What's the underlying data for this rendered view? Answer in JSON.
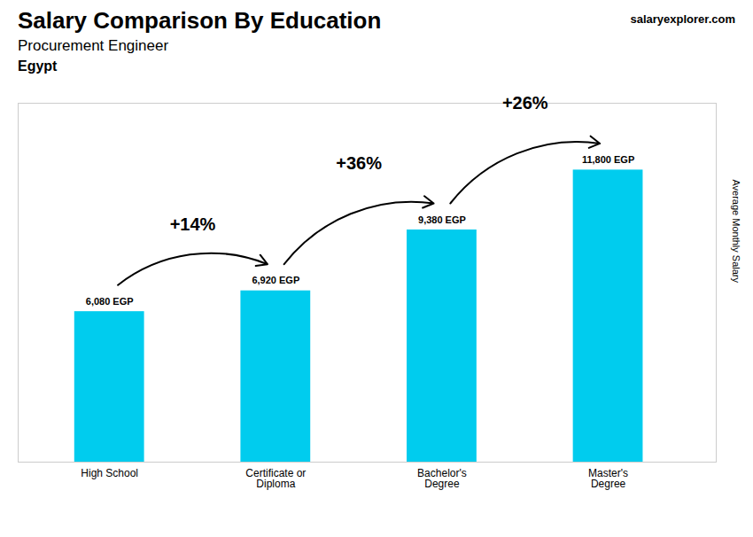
{
  "chart_data": {
    "type": "bar",
    "title": "Salary Comparison By Education",
    "subtitle": "Procurement Engineer",
    "ylabel": "Average Monthly Salary",
    "categories": [
      "High School",
      "Certificate or\nDiploma",
      "Bachelor's\nDegree",
      "Master's\nDegree"
    ],
    "values": [
      6080,
      6920,
      9380,
      11800
    ],
    "value_labels": [
      "6,080 EGP",
      "6,920 EGP",
      "9,380 EGP",
      "11,800 EGP"
    ],
    "data_labels": true,
    "color": "#00CCEE",
    "ylim": [
      0,
      14500
    ],
    "tick_labels": "x",
    "grid": false,
    "annotations": [
      {
        "text": "Egypt"
      },
      {
        "text": "salaryexplorer.com"
      },
      {
        "text": "+14%",
        "from": "High School",
        "to": "Certificate or\nDiploma"
      },
      {
        "text": "+36%",
        "from": "Certificate or\nDiploma",
        "to": "Bachelor's\nDegree"
      },
      {
        "text": "+26%",
        "from": "Bachelor's\nDegree",
        "to": "Master's\nDegree"
      }
    ]
  }
}
